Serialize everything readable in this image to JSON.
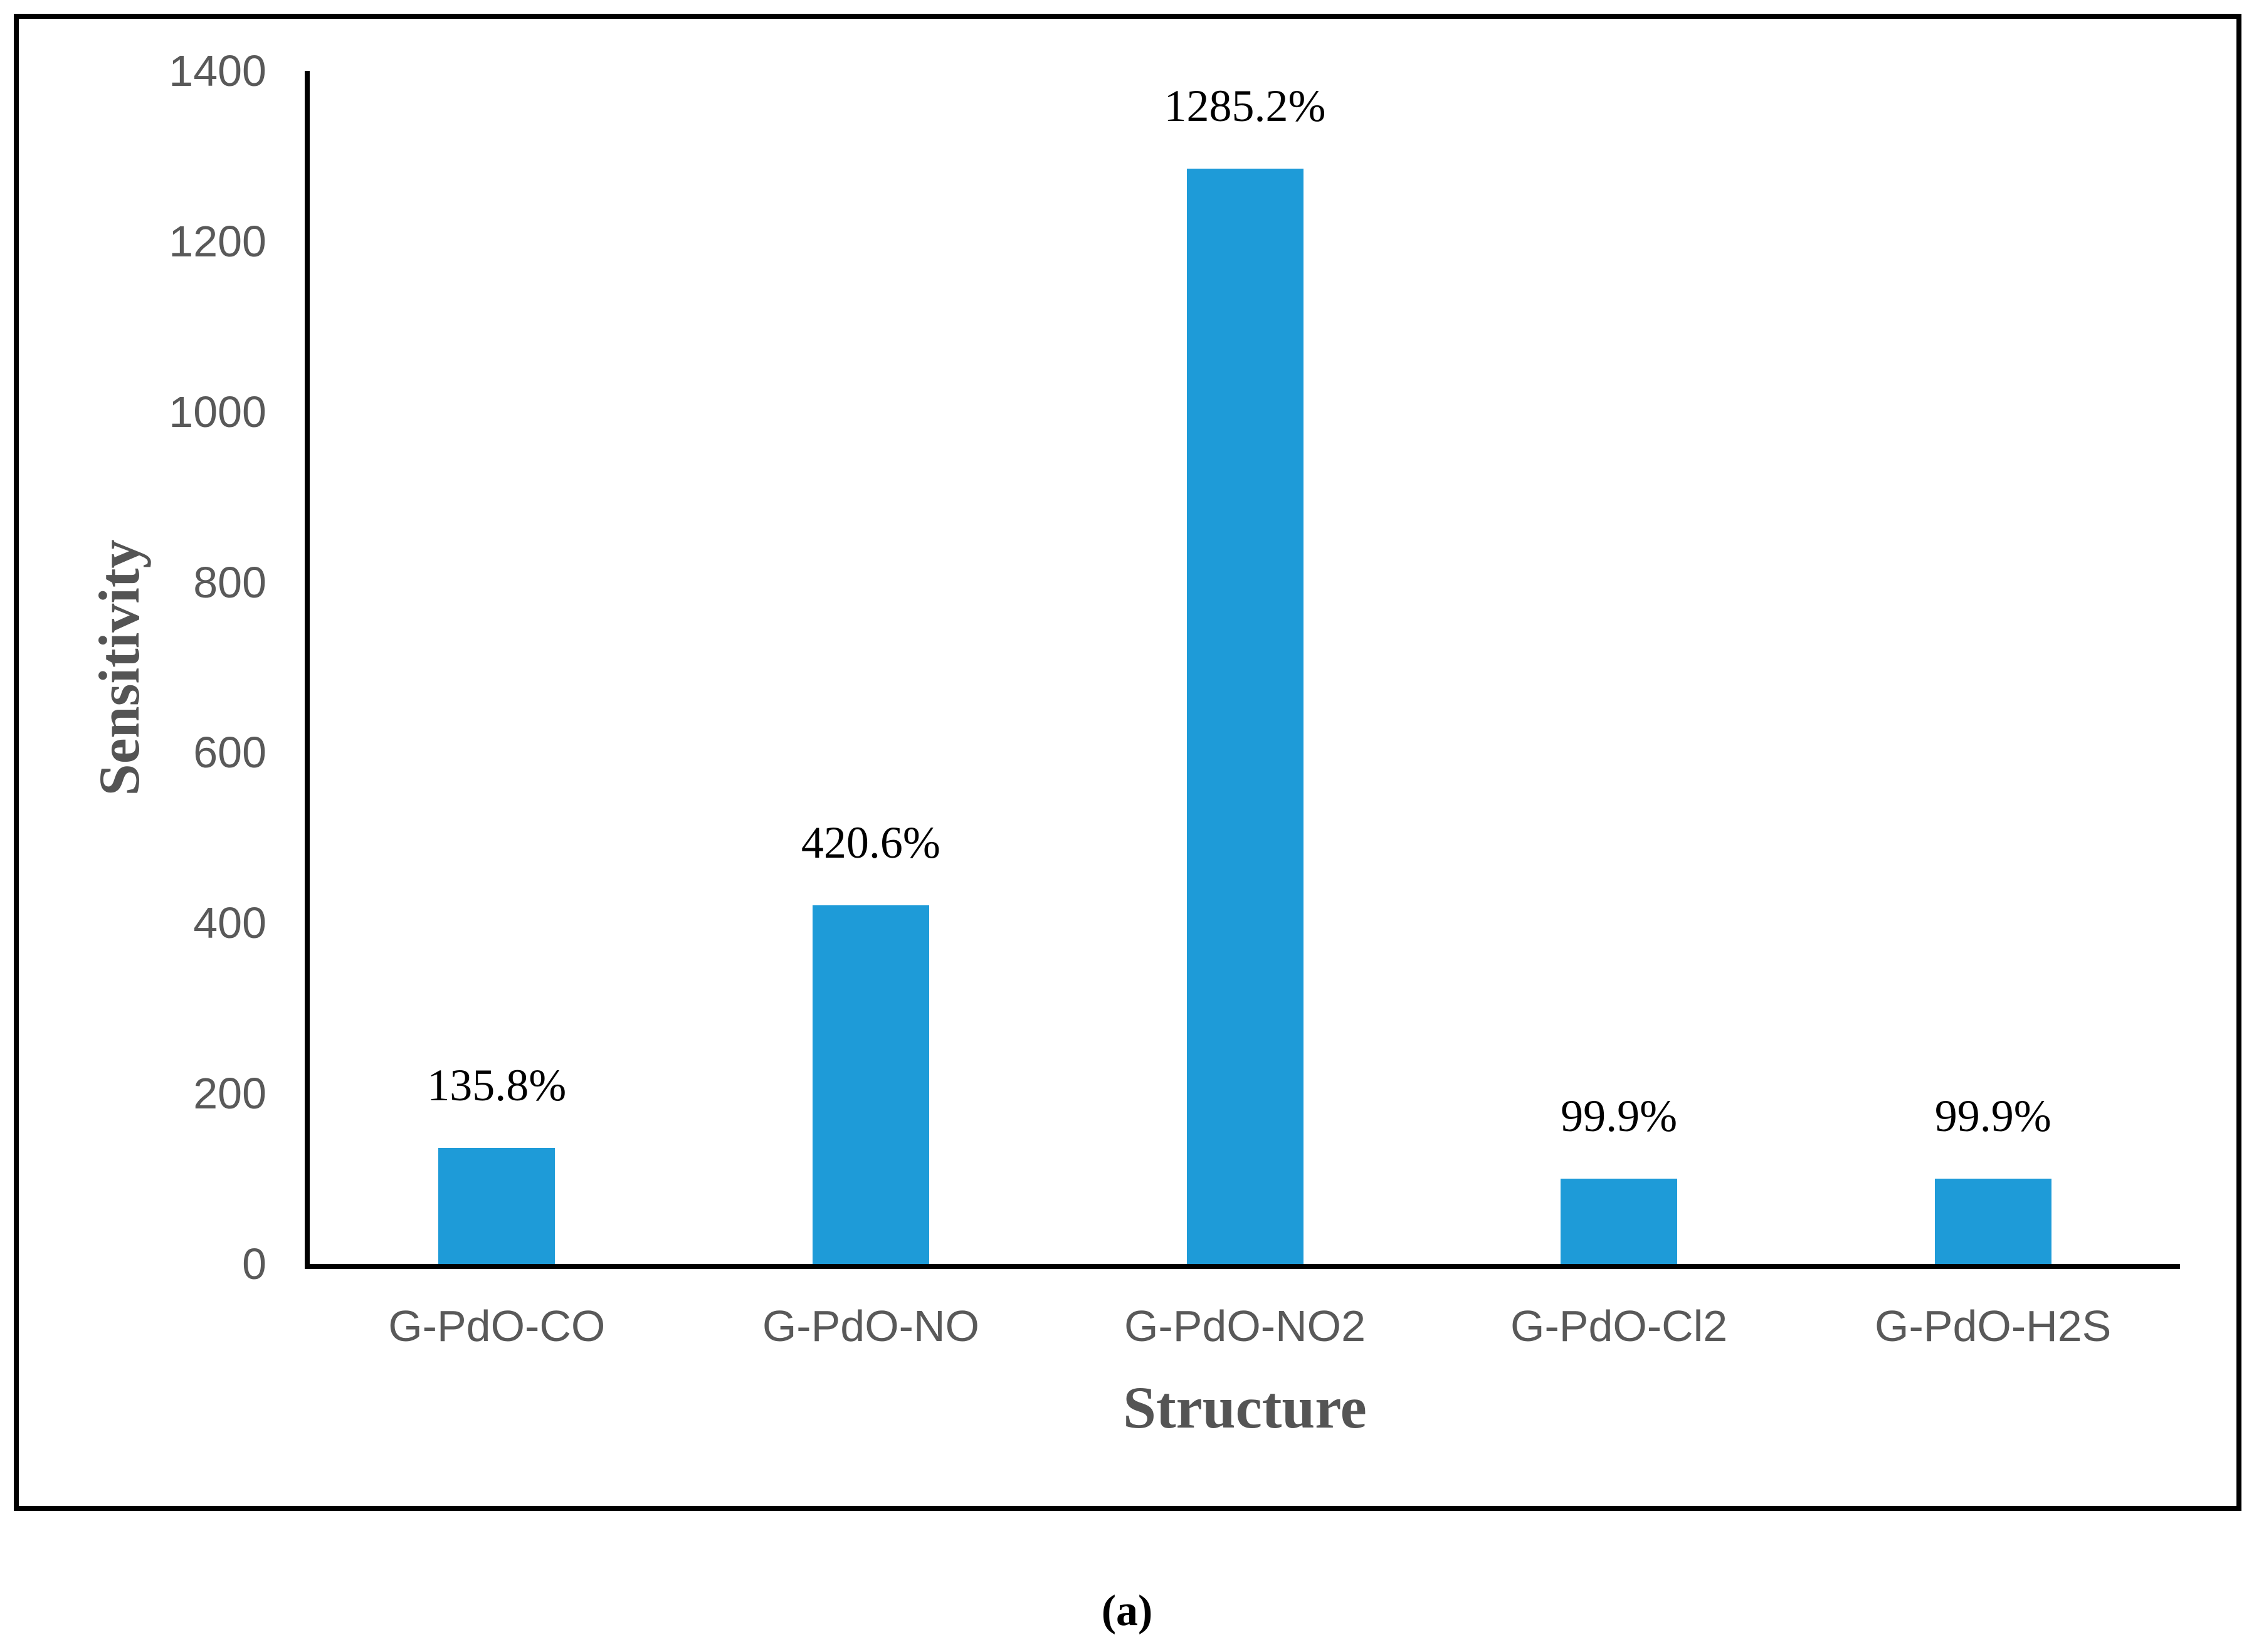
{
  "figure": {
    "caption": "(a)"
  },
  "colors": {
    "bar": "#1E9BD8",
    "axis_line": "#000000",
    "border": "#000000",
    "tick_label": "#595959",
    "axis_title": "#545454",
    "data_label": "#000000"
  },
  "chart_data": {
    "type": "bar",
    "title": "",
    "xlabel": "Structure",
    "ylabel": "Sensitivity",
    "categories": [
      "G-PdO-CO",
      "G-PdO-NO",
      "G-PdO-NO2",
      "G-PdO-Cl2",
      "G-PdO-H2S"
    ],
    "values": [
      135.8,
      420.6,
      1285.2,
      99.9,
      99.9
    ],
    "data_labels": [
      "135.8%",
      "420.6%",
      "1285.2%",
      "99.9%",
      "99.9%"
    ],
    "ylim": [
      0,
      1400
    ],
    "yticks": [
      0,
      200,
      400,
      600,
      800,
      1000,
      1200,
      1400
    ],
    "ytick_interval": 200,
    "grid": false,
    "legend": "none",
    "bar_color": "#1E9BD8"
  }
}
